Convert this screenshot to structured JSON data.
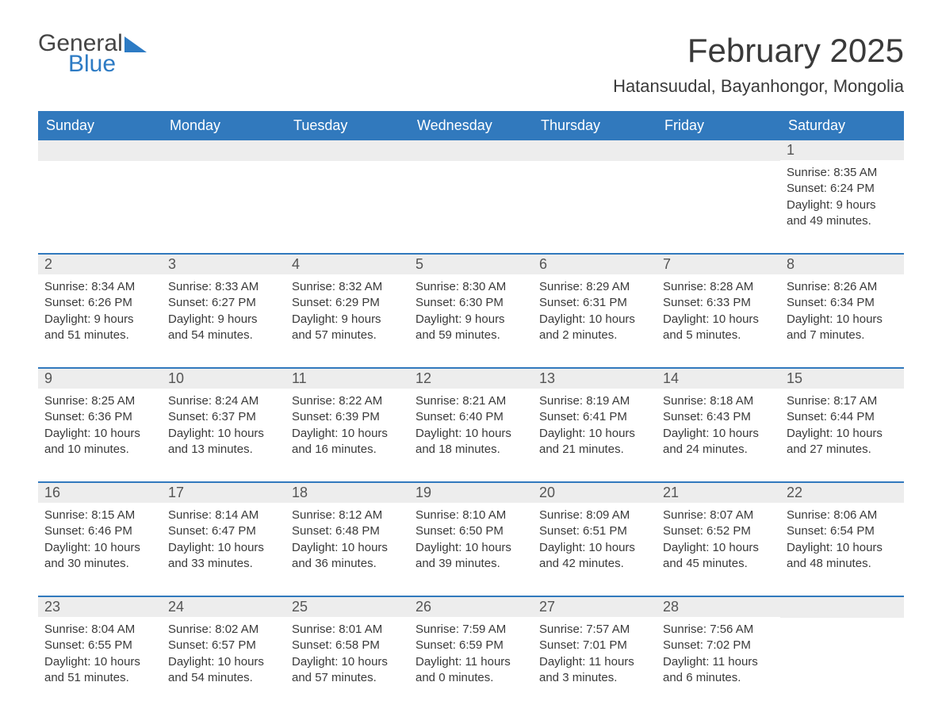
{
  "logo": {
    "word1": "General",
    "word2": "Blue"
  },
  "title": "February 2025",
  "location": "Hatansuudal, Bayanhongor, Mongolia",
  "colors": {
    "header_bg": "#3179bd",
    "header_text": "#ffffff",
    "daynum_bg": "#ededed",
    "body_text": "#3a3a3a",
    "rule": "#3179bd",
    "logo_blue": "#2d7bc4"
  },
  "typography": {
    "title_fontsize": 42,
    "location_fontsize": 22,
    "dow_fontsize": 18,
    "daynum_fontsize": 18,
    "body_fontsize": 15
  },
  "day_names": [
    "Sunday",
    "Monday",
    "Tuesday",
    "Wednesday",
    "Thursday",
    "Friday",
    "Saturday"
  ],
  "weeks": [
    [
      null,
      null,
      null,
      null,
      null,
      null,
      {
        "n": "1",
        "sunrise": "Sunrise: 8:35 AM",
        "sunset": "Sunset: 6:24 PM",
        "daylight": "Daylight: 9 hours and 49 minutes."
      }
    ],
    [
      {
        "n": "2",
        "sunrise": "Sunrise: 8:34 AM",
        "sunset": "Sunset: 6:26 PM",
        "daylight": "Daylight: 9 hours and 51 minutes."
      },
      {
        "n": "3",
        "sunrise": "Sunrise: 8:33 AM",
        "sunset": "Sunset: 6:27 PM",
        "daylight": "Daylight: 9 hours and 54 minutes."
      },
      {
        "n": "4",
        "sunrise": "Sunrise: 8:32 AM",
        "sunset": "Sunset: 6:29 PM",
        "daylight": "Daylight: 9 hours and 57 minutes."
      },
      {
        "n": "5",
        "sunrise": "Sunrise: 8:30 AM",
        "sunset": "Sunset: 6:30 PM",
        "daylight": "Daylight: 9 hours and 59 minutes."
      },
      {
        "n": "6",
        "sunrise": "Sunrise: 8:29 AM",
        "sunset": "Sunset: 6:31 PM",
        "daylight": "Daylight: 10 hours and 2 minutes."
      },
      {
        "n": "7",
        "sunrise": "Sunrise: 8:28 AM",
        "sunset": "Sunset: 6:33 PM",
        "daylight": "Daylight: 10 hours and 5 minutes."
      },
      {
        "n": "8",
        "sunrise": "Sunrise: 8:26 AM",
        "sunset": "Sunset: 6:34 PM",
        "daylight": "Daylight: 10 hours and 7 minutes."
      }
    ],
    [
      {
        "n": "9",
        "sunrise": "Sunrise: 8:25 AM",
        "sunset": "Sunset: 6:36 PM",
        "daylight": "Daylight: 10 hours and 10 minutes."
      },
      {
        "n": "10",
        "sunrise": "Sunrise: 8:24 AM",
        "sunset": "Sunset: 6:37 PM",
        "daylight": "Daylight: 10 hours and 13 minutes."
      },
      {
        "n": "11",
        "sunrise": "Sunrise: 8:22 AM",
        "sunset": "Sunset: 6:39 PM",
        "daylight": "Daylight: 10 hours and 16 minutes."
      },
      {
        "n": "12",
        "sunrise": "Sunrise: 8:21 AM",
        "sunset": "Sunset: 6:40 PM",
        "daylight": "Daylight: 10 hours and 18 minutes."
      },
      {
        "n": "13",
        "sunrise": "Sunrise: 8:19 AM",
        "sunset": "Sunset: 6:41 PM",
        "daylight": "Daylight: 10 hours and 21 minutes."
      },
      {
        "n": "14",
        "sunrise": "Sunrise: 8:18 AM",
        "sunset": "Sunset: 6:43 PM",
        "daylight": "Daylight: 10 hours and 24 minutes."
      },
      {
        "n": "15",
        "sunrise": "Sunrise: 8:17 AM",
        "sunset": "Sunset: 6:44 PM",
        "daylight": "Daylight: 10 hours and 27 minutes."
      }
    ],
    [
      {
        "n": "16",
        "sunrise": "Sunrise: 8:15 AM",
        "sunset": "Sunset: 6:46 PM",
        "daylight": "Daylight: 10 hours and 30 minutes."
      },
      {
        "n": "17",
        "sunrise": "Sunrise: 8:14 AM",
        "sunset": "Sunset: 6:47 PM",
        "daylight": "Daylight: 10 hours and 33 minutes."
      },
      {
        "n": "18",
        "sunrise": "Sunrise: 8:12 AM",
        "sunset": "Sunset: 6:48 PM",
        "daylight": "Daylight: 10 hours and 36 minutes."
      },
      {
        "n": "19",
        "sunrise": "Sunrise: 8:10 AM",
        "sunset": "Sunset: 6:50 PM",
        "daylight": "Daylight: 10 hours and 39 minutes."
      },
      {
        "n": "20",
        "sunrise": "Sunrise: 8:09 AM",
        "sunset": "Sunset: 6:51 PM",
        "daylight": "Daylight: 10 hours and 42 minutes."
      },
      {
        "n": "21",
        "sunrise": "Sunrise: 8:07 AM",
        "sunset": "Sunset: 6:52 PM",
        "daylight": "Daylight: 10 hours and 45 minutes."
      },
      {
        "n": "22",
        "sunrise": "Sunrise: 8:06 AM",
        "sunset": "Sunset: 6:54 PM",
        "daylight": "Daylight: 10 hours and 48 minutes."
      }
    ],
    [
      {
        "n": "23",
        "sunrise": "Sunrise: 8:04 AM",
        "sunset": "Sunset: 6:55 PM",
        "daylight": "Daylight: 10 hours and 51 minutes."
      },
      {
        "n": "24",
        "sunrise": "Sunrise: 8:02 AM",
        "sunset": "Sunset: 6:57 PM",
        "daylight": "Daylight: 10 hours and 54 minutes."
      },
      {
        "n": "25",
        "sunrise": "Sunrise: 8:01 AM",
        "sunset": "Sunset: 6:58 PM",
        "daylight": "Daylight: 10 hours and 57 minutes."
      },
      {
        "n": "26",
        "sunrise": "Sunrise: 7:59 AM",
        "sunset": "Sunset: 6:59 PM",
        "daylight": "Daylight: 11 hours and 0 minutes."
      },
      {
        "n": "27",
        "sunrise": "Sunrise: 7:57 AM",
        "sunset": "Sunset: 7:01 PM",
        "daylight": "Daylight: 11 hours and 3 minutes."
      },
      {
        "n": "28",
        "sunrise": "Sunrise: 7:56 AM",
        "sunset": "Sunset: 7:02 PM",
        "daylight": "Daylight: 11 hours and 6 minutes."
      },
      null
    ]
  ]
}
